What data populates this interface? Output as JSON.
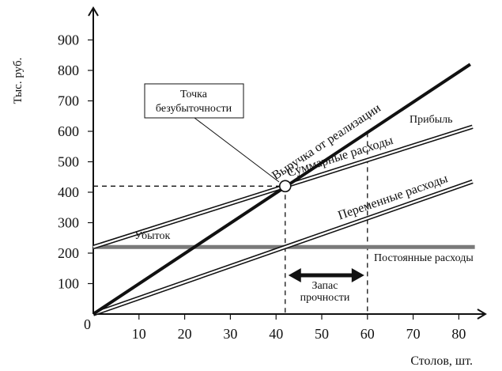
{
  "chart_data": {
    "type": "line",
    "title": "",
    "xlabel": "Столов, шт.",
    "ylabel": "Тыс. руб.",
    "xlim": [
      0,
      85
    ],
    "ylim": [
      0,
      950
    ],
    "x_ticks": [
      "10",
      "20",
      "30",
      "40",
      "50",
      "60",
      "70",
      "80"
    ],
    "y_ticks": [
      "100",
      "200",
      "300",
      "400",
      "500",
      "600",
      "700",
      "800",
      "900"
    ],
    "origin_label": "0",
    "series": [
      {
        "name": "Выручка от реализации",
        "x": [
          0,
          82.5
        ],
        "y": [
          0,
          820
        ],
        "style": "thick"
      },
      {
        "name": "Суммарные расходы",
        "x": [
          0,
          83
        ],
        "y": [
          220,
          615
        ],
        "style": "double"
      },
      {
        "name": "Переменные расходы",
        "x": [
          0,
          83
        ],
        "y": [
          0,
          435
        ],
        "style": "double"
      },
      {
        "name": "Постоянные расходы",
        "x": [
          0,
          83.5
        ],
        "y": [
          220,
          220
        ],
        "style": "gray-thick"
      }
    ],
    "annotations": {
      "break_even_label": [
        "Точка",
        "безубыточности"
      ],
      "break_even_point": {
        "x": 42,
        "y": 420
      },
      "profit_label": "Прибыль",
      "loss_label": "Убыток",
      "safety_margin_label": [
        "Запас",
        "прочности"
      ],
      "safety_margin_range": [
        42,
        60
      ]
    },
    "grid": false
  }
}
